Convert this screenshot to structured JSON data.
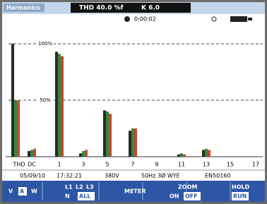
{
  "header": {
    "title": "Harmonics",
    "thd": "THD 40.0 %f",
    "k": "K 6.0",
    "time": "0:00:02"
  },
  "chart_data": {
    "type": "bar",
    "categories": [
      "THD",
      "DC",
      "1",
      "3",
      "5",
      "7",
      "9",
      "11",
      "13",
      "15",
      "17"
    ],
    "series": [
      {
        "color": "#2a2a2a",
        "values": [
          100,
          5,
          93,
          3,
          41,
          23,
          0,
          2,
          6,
          0,
          0
        ]
      },
      {
        "color": "#2f8a3c",
        "values": [
          50,
          6,
          91,
          5,
          40,
          25,
          0,
          3,
          7,
          0,
          0
        ]
      },
      {
        "color": "#c8452f",
        "values": [
          50,
          7,
          89,
          6,
          38,
          25,
          0,
          2,
          6,
          0,
          0
        ]
      }
    ],
    "ylim": [
      0,
      100
    ],
    "yticks": [
      {
        "value": 100,
        "label": "100%"
      },
      {
        "value": 50,
        "label": "50%"
      }
    ],
    "grid": true
  },
  "status": [
    "05/09/10",
    "17:32:21",
    "380V",
    "50Hz 3Ø WYE",
    "EN50160"
  ],
  "softkeys": [
    [
      "V",
      "A",
      "W"
    ],
    [
      "L1",
      "L2",
      "L3",
      "N",
      "ALL"
    ],
    [
      "METER"
    ],
    [
      "ZOOM",
      "ON",
      "OFF"
    ],
    [
      "HOLD",
      "RUN"
    ]
  ]
}
